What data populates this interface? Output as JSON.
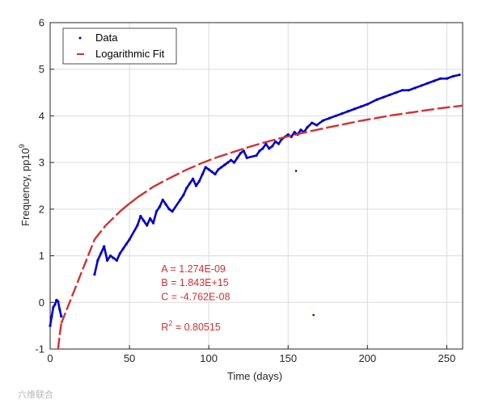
{
  "chart_data": {
    "type": "scatter",
    "xlabel": "Time (days)",
    "ylabel": "Frequency, pp10",
    "ylabel_sup": "9",
    "xlim": [
      0,
      260
    ],
    "ylim": [
      -1,
      6
    ],
    "x_ticks": [
      0,
      50,
      100,
      150,
      200,
      250
    ],
    "y_ticks": [
      -1,
      0,
      1,
      2,
      3,
      4,
      5,
      6
    ],
    "x_tick_labels": [
      "0",
      "50",
      "100",
      "150",
      "200",
      "250"
    ],
    "y_tick_labels": [
      "-1",
      "0",
      "1",
      "2",
      "3",
      "4",
      "5",
      "6"
    ],
    "grid": true,
    "legend": {
      "placement": "top-left",
      "entries": [
        {
          "label": "Data",
          "marker": "dot",
          "color": "#0000c8"
        },
        {
          "label": "Logarithmic Fit",
          "marker": "dash",
          "color": "#d03030"
        }
      ]
    },
    "series": [
      {
        "name": "Data",
        "color": "#0000c8",
        "x": [
          0,
          1,
          2,
          3,
          4,
          5,
          6,
          7,
          28,
          30,
          32,
          34,
          36,
          38,
          40,
          42,
          44,
          46,
          48,
          50,
          55,
          57,
          59,
          61,
          63,
          65,
          67,
          69,
          71,
          73,
          75,
          77,
          82,
          84,
          86,
          88,
          90,
          92,
          94,
          96,
          98,
          100,
          102,
          104,
          106,
          108,
          110,
          112,
          114,
          116,
          118,
          120,
          122,
          124,
          130,
          132,
          134,
          136,
          138,
          140,
          142,
          144,
          146,
          148,
          150,
          152,
          154,
          156,
          158,
          160,
          162,
          165,
          168,
          172,
          176,
          180,
          184,
          188,
          192,
          196,
          200,
          206,
          210,
          214,
          218,
          222,
          226,
          230,
          234,
          238,
          242,
          246,
          250,
          254,
          258
        ],
        "y": [
          -0.5,
          -0.3,
          -0.1,
          -0.05,
          0.05,
          0.02,
          -0.15,
          -0.3,
          0.6,
          0.9,
          1.05,
          1.2,
          0.9,
          1.0,
          0.95,
          0.9,
          1.05,
          1.15,
          1.25,
          1.35,
          1.65,
          1.85,
          1.75,
          1.65,
          1.8,
          1.7,
          1.95,
          2.05,
          2.2,
          2.1,
          2.0,
          1.95,
          2.2,
          2.3,
          2.45,
          2.55,
          2.65,
          2.5,
          2.6,
          2.75,
          2.9,
          2.85,
          2.8,
          2.75,
          2.85,
          2.9,
          2.95,
          3.0,
          3.05,
          3.0,
          3.1,
          3.2,
          3.25,
          3.1,
          3.15,
          3.25,
          3.3,
          3.4,
          3.3,
          3.35,
          3.45,
          3.4,
          3.5,
          3.55,
          3.6,
          3.55,
          3.65,
          3.6,
          3.7,
          3.65,
          3.75,
          3.85,
          3.8,
          3.9,
          3.95,
          4.0,
          4.05,
          4.1,
          4.15,
          4.2,
          4.25,
          4.35,
          4.4,
          4.45,
          4.5,
          4.55,
          4.55,
          4.6,
          4.65,
          4.7,
          4.75,
          4.8,
          4.8,
          4.85,
          4.88
        ]
      },
      {
        "name": "Data",
        "color": "#0000c8",
        "x": [
          155,
          166
        ],
        "y": [
          2.82,
          -0.27
        ]
      },
      {
        "name": "Logarithmic Fit",
        "color": "#d03030",
        "x": [
          5,
          6,
          7,
          28,
          35,
          45,
          50,
          55,
          65,
          75,
          85,
          95,
          105,
          115,
          125,
          135,
          145,
          155,
          165,
          175,
          185,
          195,
          205,
          215,
          225,
          235,
          245,
          255,
          260
        ],
        "y": [
          -1.0,
          -0.7,
          -0.45,
          1.35,
          1.65,
          1.98,
          2.12,
          2.25,
          2.48,
          2.66,
          2.83,
          2.98,
          3.11,
          3.22,
          3.33,
          3.43,
          3.52,
          3.6,
          3.68,
          3.75,
          3.82,
          3.89,
          3.95,
          4.01,
          4.06,
          4.11,
          4.16,
          4.2,
          4.22
        ]
      }
    ],
    "annotations": [
      {
        "text": "A = 1.274E-09",
        "x": 70,
        "y": 0.65,
        "color": "#d03030"
      },
      {
        "text": "B = 1.843E+15",
        "x": 70,
        "y": 0.35,
        "color": "#d03030"
      },
      {
        "text": "C = -4.762E-08",
        "x": 70,
        "y": 0.05,
        "color": "#d03030"
      },
      {
        "text": "R",
        "sup": "2",
        "rest": " = 0.80515",
        "x": 70,
        "y": -0.6,
        "color": "#d03030"
      }
    ],
    "watermark": "六维联合"
  }
}
